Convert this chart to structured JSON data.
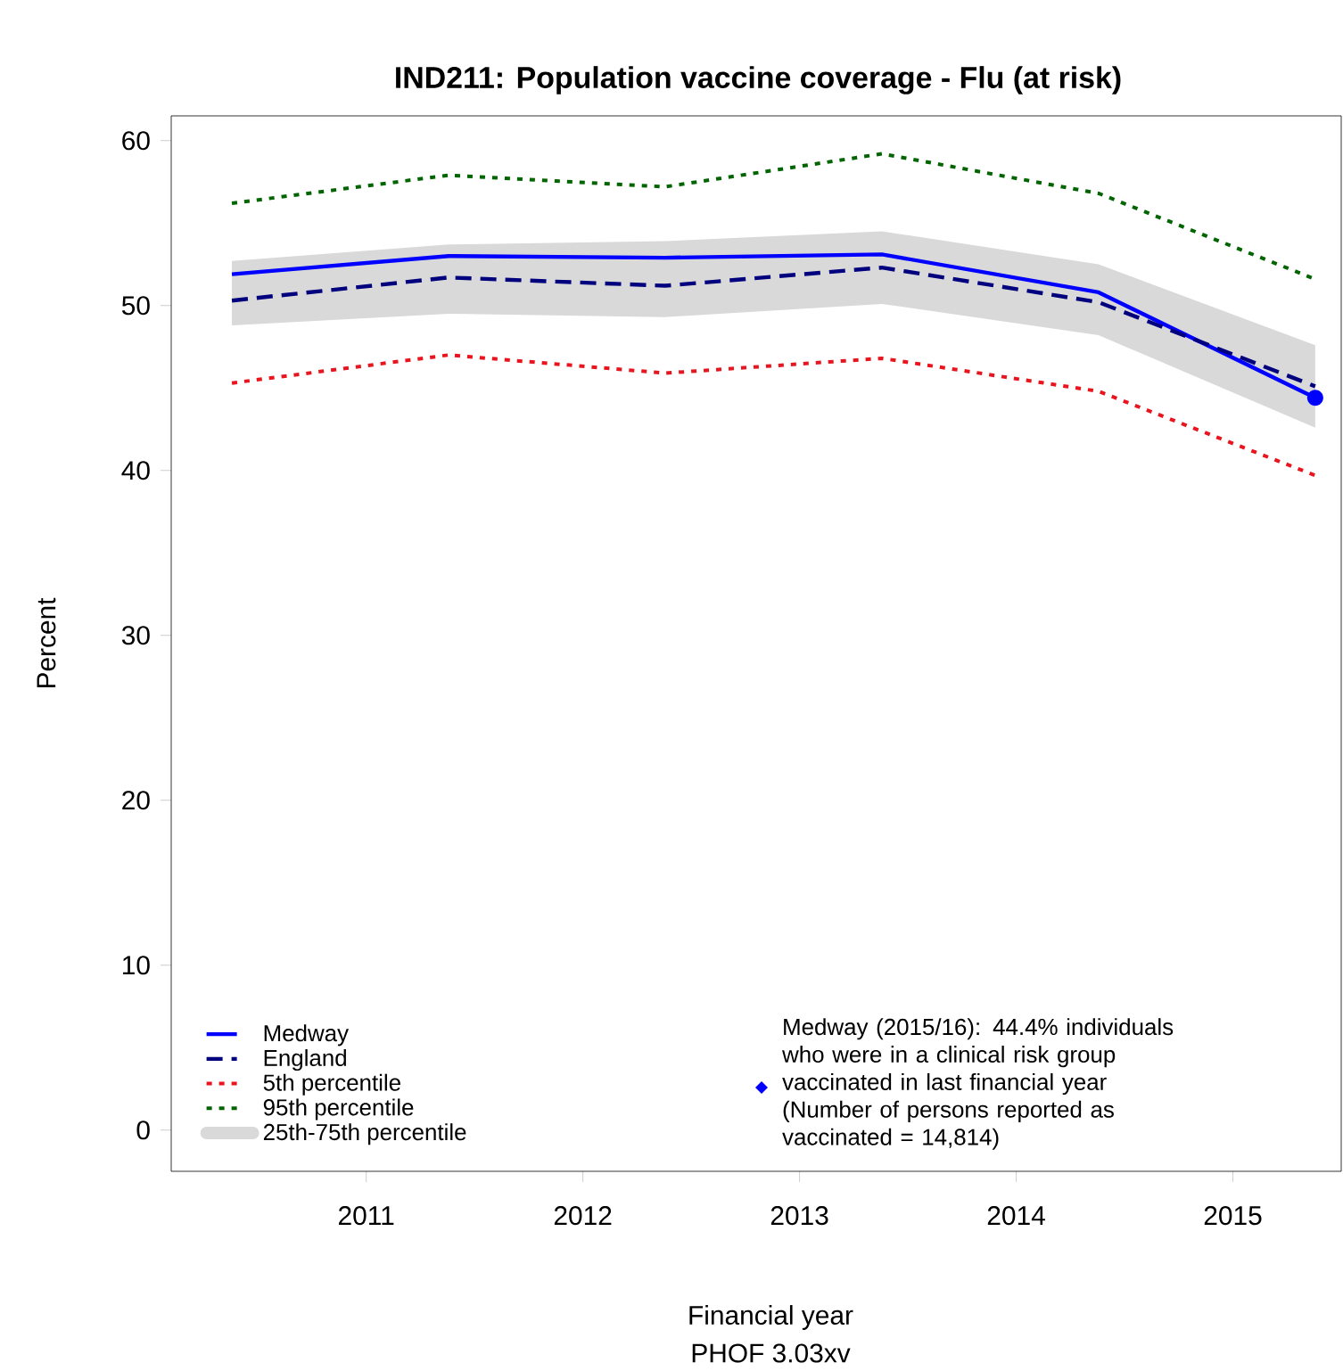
{
  "chart_data": {
    "type": "line",
    "title": "IND211: Population vaccine coverage - Flu (at risk)",
    "xlabel": "Financial year",
    "ylabel": "Percent",
    "x": [
      2010.38,
      2011.38,
      2012.38,
      2013.38,
      2014.38,
      2015.38
    ],
    "series": [
      {
        "name": "Medway",
        "color": "#0000ff",
        "line_style": "solid",
        "values": [
          51.9,
          53.0,
          52.9,
          53.1,
          50.8,
          44.4
        ]
      },
      {
        "name": "England",
        "color": "#00007f",
        "line_style": "dashed",
        "values": [
          50.3,
          51.7,
          51.2,
          52.3,
          50.2,
          45.1
        ]
      },
      {
        "name": "5th percentile",
        "color": "#e8141e",
        "line_style": "dotted",
        "values": [
          45.3,
          47.0,
          45.9,
          46.8,
          44.8,
          39.7
        ]
      },
      {
        "name": "95th percentile",
        "color": "#006400",
        "line_style": "dotted",
        "values": [
          56.2,
          57.9,
          57.2,
          59.2,
          56.8,
          51.6
        ]
      },
      {
        "name": "25th-75th percentile",
        "type": "area",
        "color": "#d9d9d9",
        "values": [
          null,
          null,
          null,
          null,
          null,
          null
        ],
        "lower": [
          48.8,
          49.5,
          49.3,
          50.1,
          48.2,
          42.6
        ],
        "upper": [
          52.7,
          53.7,
          53.9,
          54.5,
          52.5,
          47.6
        ]
      }
    ],
    "xlim": [
      2010.1,
      2015.5
    ],
    "ylim": [
      -2.5,
      61.5
    ],
    "xticks": [
      2011,
      2012,
      2013,
      2014,
      2015
    ],
    "yticks": [
      0,
      10,
      20,
      30,
      40,
      50,
      60
    ],
    "legend": "bottom left",
    "grid": false,
    "marker": "none",
    "annotations": [
      "Medway (2015/16): 44.4% individuals who were in a clinical risk group vaccinated in last financial year (Number of persons reported as vaccinated = 14,814)",
      "PHOF 3.03xv"
    ]
  }
}
